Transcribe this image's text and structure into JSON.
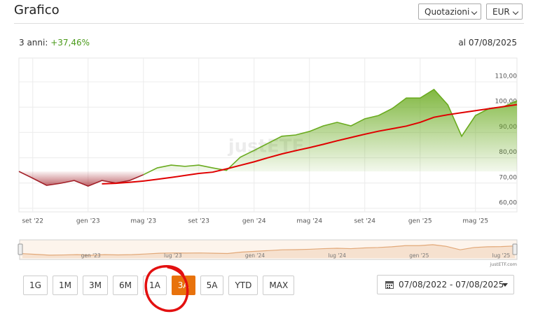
{
  "header": {
    "title": "Grafico",
    "selects": [
      "Quotazioni",
      "EUR"
    ]
  },
  "summary": {
    "period": "3 anni:",
    "performance": "+37,46%",
    "date": "al 07/08/2025"
  },
  "chart_data": {
    "type": "line",
    "categories": [
      null,
      "set '22",
      null,
      null,
      null,
      "gen '23",
      null,
      null,
      null,
      "mag '23",
      null,
      null,
      null,
      "set '23",
      null,
      null,
      null,
      "gen '24",
      null,
      null,
      null,
      "mag '24",
      null,
      null,
      null,
      "set '24",
      null,
      null,
      null,
      "gen '25",
      null,
      null,
      null,
      "mag '25",
      null,
      null,
      null
    ],
    "series": [
      {
        "color": "#6aab1f",
        "negative_color": "#a3222a",
        "values": [
          74.6,
          71.9,
          69.1,
          69.9,
          71.0,
          68.8,
          71.0,
          70.0,
          71.0,
          73.3,
          76.0,
          77.1,
          76.6,
          77.1,
          76.0,
          75.0,
          80.2,
          82.9,
          85.7,
          88.5,
          89.0,
          90.4,
          92.6,
          94.0,
          92.6,
          95.4,
          96.7,
          99.5,
          103.6,
          103.6,
          107.0,
          100.9,
          88.5,
          96.7,
          99.5,
          100.1,
          102.5
        ]
      },
      {
        "color": "#e00000",
        "values": [
          null,
          null,
          null,
          null,
          null,
          null,
          69.7,
          69.9,
          70.3,
          70.8,
          71.5,
          72.2,
          73.0,
          73.8,
          74.3,
          75.6,
          77.0,
          78.4,
          80.0,
          81.5,
          82.8,
          84.0,
          85.3,
          86.7,
          88.0,
          89.3,
          90.5,
          91.5,
          92.5,
          94.0,
          96.0,
          97.0,
          97.8,
          98.6,
          99.4,
          100.2,
          101.0
        ]
      }
    ],
    "ylim": [
      58.6,
      119.4
    ],
    "yticks": [
      {
        "value": 60,
        "label": "60,00"
      },
      {
        "value": 70,
        "label": "70,00"
      },
      {
        "value": 80,
        "label": "80,00"
      },
      {
        "value": 90,
        "label": "90,00"
      },
      {
        "value": 100,
        "label": "100,00"
      },
      {
        "value": 110,
        "label": "110,00"
      }
    ],
    "grid": true,
    "watermark": "justETF",
    "navigator": {
      "labels": [
        "gen '23",
        "lug '23",
        "gen '24",
        "lug '24",
        "gen '25",
        "lug '25"
      ],
      "color": "#e2a878",
      "credit": "justETF.com"
    }
  },
  "range_buttons": [
    "1G",
    "1M",
    "3M",
    "6M",
    "1A",
    "3A",
    "5A",
    "YTD",
    "MAX"
  ],
  "active_button": 5,
  "date_range": "07/08/2022 - 07/08/2025"
}
